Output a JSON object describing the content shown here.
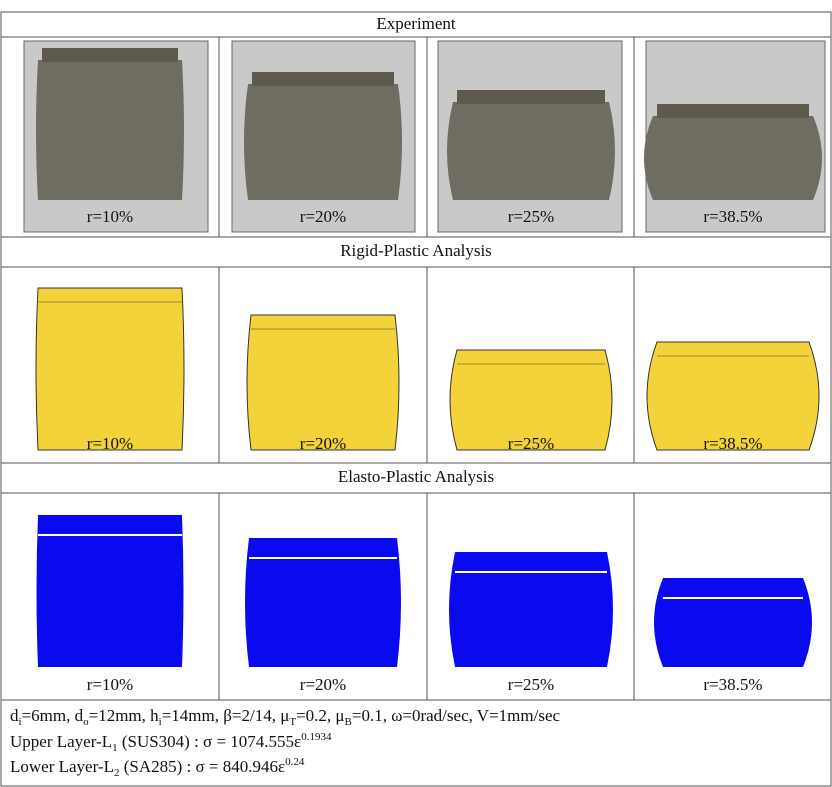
{
  "sections": [
    {
      "title": "Experiment",
      "labels": [
        "r=10%",
        "r=20%",
        "r=25%",
        "r=38.5%"
      ]
    },
    {
      "title": "Rigid-Plastic  Analysis",
      "labels": [
        "r=10%",
        "r=20%",
        "r=25%",
        "r=38.5%"
      ]
    },
    {
      "title": "Elasto-Plastic  Analysis",
      "labels": [
        "r=10%",
        "r=20%",
        "r=25%",
        "r=38.5%"
      ]
    }
  ],
  "footer": {
    "lines": [
      [
        "d",
        "i",
        "=6mm,  d",
        "o",
        "=12mm,  h",
        "i",
        "=14mm,  β=2/14,  μ",
        "T",
        "=0.2,  μ",
        "B",
        "=0.1,  ω=0rad/sec,  V=1mm/sec"
      ],
      [
        "Upper Layer-L",
        "1",
        " (SUS304) : σ  =  1074.555ε",
        "0.1934"
      ],
      [
        "Lower Layer-L",
        "2",
        " (SA285) : σ  =  840.946ε",
        "0.24"
      ]
    ]
  }
}
